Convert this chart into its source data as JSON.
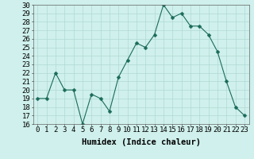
{
  "x": [
    0,
    1,
    2,
    3,
    4,
    5,
    6,
    7,
    8,
    9,
    10,
    11,
    12,
    13,
    14,
    15,
    16,
    17,
    18,
    19,
    20,
    21,
    22,
    23
  ],
  "y": [
    19,
    19,
    22,
    20,
    20,
    16,
    19.5,
    19,
    17.5,
    21.5,
    23.5,
    25.5,
    25,
    26.5,
    30,
    28.5,
    29,
    27.5,
    27.5,
    26.5,
    24.5,
    21,
    18,
    17
  ],
  "line_color": "#1a6b5a",
  "marker": "D",
  "marker_size": 2.5,
  "bg_color": "#cff0ec",
  "grid_color": "#aad4ce",
  "xlabel": "Humidex (Indice chaleur)",
  "xlim": [
    -0.5,
    23.5
  ],
  "ylim": [
    16,
    30
  ],
  "yticks": [
    16,
    17,
    18,
    19,
    20,
    21,
    22,
    23,
    24,
    25,
    26,
    27,
    28,
    29,
    30
  ],
  "xtick_labels": [
    "0",
    "1",
    "2",
    "3",
    "4",
    "5",
    "6",
    "7",
    "8",
    "9",
    "10",
    "11",
    "12",
    "13",
    "14",
    "15",
    "16",
    "17",
    "18",
    "19",
    "20",
    "21",
    "22",
    "23"
  ],
  "xlabel_fontsize": 7.5,
  "tick_fontsize": 6.5
}
